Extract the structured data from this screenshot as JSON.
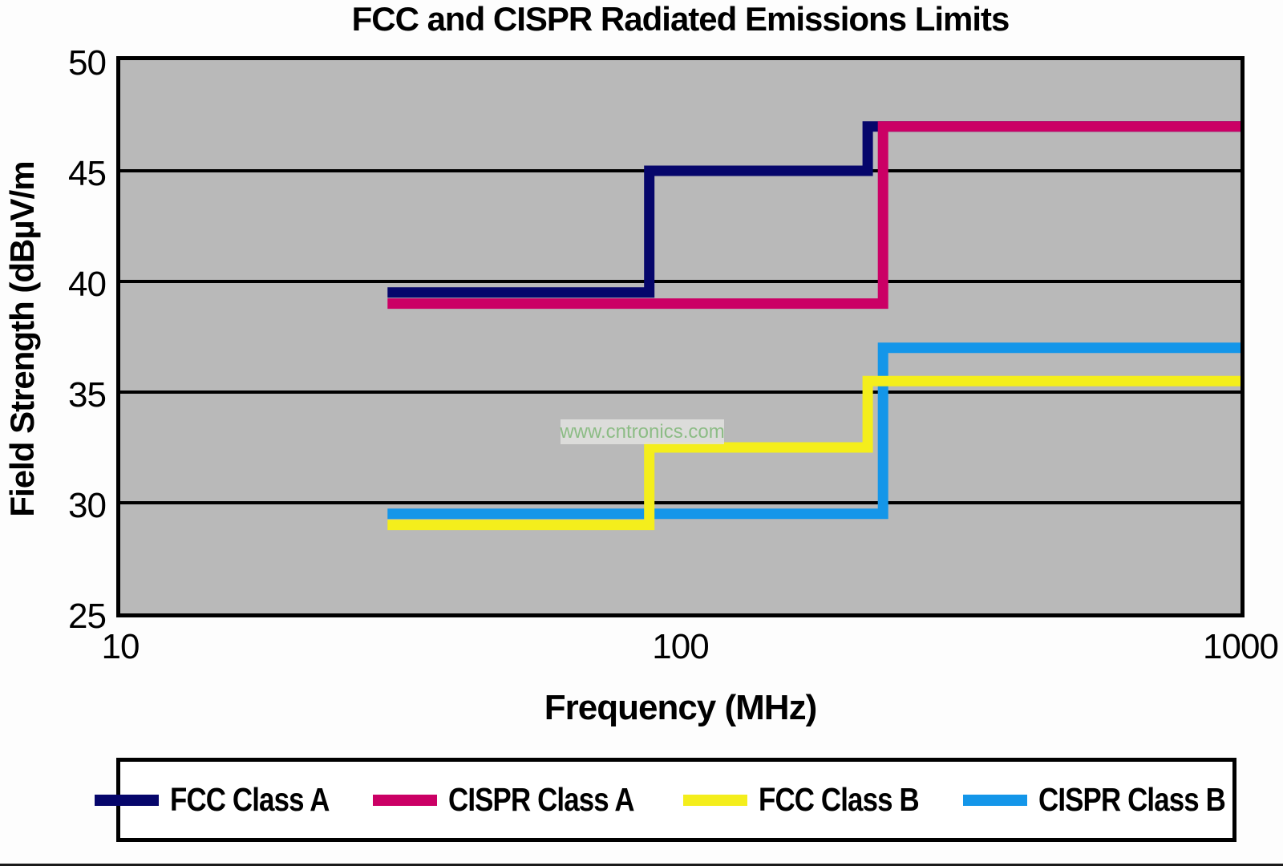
{
  "title": "FCC and CISPR Radiated Emissions Limits",
  "watermark": "www.cntronics.com",
  "chart_data": {
    "type": "line",
    "subtype": "step-limit-lines",
    "title": "FCC and CISPR Radiated Emissions Limits",
    "xlabel": "Frequency (MHz)",
    "ylabel": "Field Strength (dBµV/m",
    "x_scale": "log",
    "xlim": [
      10,
      1000
    ],
    "ylim": [
      25,
      50
    ],
    "x_ticks": [
      10,
      100,
      1000
    ],
    "y_ticks": [
      50,
      45,
      40,
      35,
      30,
      25
    ],
    "grid_y_values": [
      45,
      40,
      35,
      30
    ],
    "grid": "horizontal-only",
    "plot_bg_color": "#b9b9b9",
    "legend_position": "bottom",
    "series": [
      {
        "name": "FCC Class A",
        "color": "#06066b",
        "points": [
          [
            30,
            39.5
          ],
          [
            88,
            39.5
          ],
          [
            88,
            45
          ],
          [
            216,
            45
          ],
          [
            216,
            47
          ],
          [
            1000,
            47
          ]
        ]
      },
      {
        "name": "CISPR Class A",
        "color": "#cb0065",
        "points": [
          [
            30,
            39
          ],
          [
            230,
            39
          ],
          [
            230,
            47
          ],
          [
            1000,
            47
          ]
        ]
      },
      {
        "name": "CISPR Class B",
        "color": "#1496e9",
        "points": [
          [
            30,
            29.5
          ],
          [
            230,
            29.5
          ],
          [
            230,
            37
          ],
          [
            1000,
            37
          ]
        ]
      },
      {
        "name": "FCC Class B",
        "color": "#f4ee1c",
        "points": [
          [
            30,
            29
          ],
          [
            88,
            29
          ],
          [
            88,
            32.5
          ],
          [
            216,
            32.5
          ],
          [
            216,
            35.5
          ],
          [
            1000,
            35.5
          ]
        ]
      }
    ]
  },
  "legend": {
    "items": [
      {
        "label": "FCC Class A",
        "color": "#06066b"
      },
      {
        "label": "CISPR Class A",
        "color": "#cb0065"
      },
      {
        "label": "FCC Class B",
        "color": "#f4ee1c"
      },
      {
        "label": "CISPR Class B",
        "color": "#1496e9"
      }
    ]
  }
}
